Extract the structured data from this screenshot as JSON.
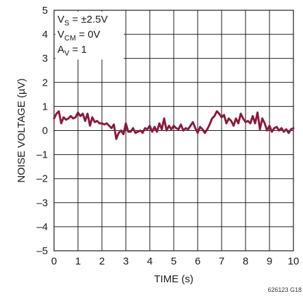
{
  "chart_data": {
    "type": "line",
    "title": "",
    "xlabel": "TIME (s)",
    "ylabel": "NOISE VOLTAGE (µV)",
    "xlim": [
      0,
      10
    ],
    "ylim": [
      -5,
      5
    ],
    "xticks": [
      "0",
      "1",
      "2",
      "3",
      "4",
      "5",
      "6",
      "7",
      "8",
      "9",
      "10"
    ],
    "yticks": [
      "5",
      "4",
      "3",
      "2",
      "1",
      "0",
      "–1",
      "–2",
      "–3",
      "–4",
      "–5"
    ],
    "grid": true,
    "conditions": {
      "vs": {
        "main": "V",
        "sub": "S",
        "rest": " = ±2.5V"
      },
      "vcm": {
        "main": "V",
        "sub": "CM",
        "rest": " = 0V"
      },
      "av": {
        "main": "A",
        "sub": "V",
        "rest": " = 1"
      }
    },
    "figure_ref": "626123 G18",
    "series": [
      {
        "color": "#8b1a3a",
        "x": [
          0.0,
          0.1,
          0.2,
          0.3,
          0.4,
          0.5,
          0.6,
          0.7,
          0.8,
          0.9,
          1.0,
          1.1,
          1.2,
          1.3,
          1.4,
          1.5,
          1.6,
          1.7,
          1.8,
          1.9,
          2.0,
          2.1,
          2.2,
          2.3,
          2.4,
          2.5,
          2.6,
          2.7,
          2.8,
          2.9,
          3.0,
          3.1,
          3.2,
          3.3,
          3.4,
          3.5,
          3.6,
          3.7,
          3.8,
          3.9,
          4.0,
          4.1,
          4.2,
          4.3,
          4.4,
          4.5,
          4.6,
          4.7,
          4.8,
          4.9,
          5.0,
          5.1,
          5.2,
          5.3,
          5.4,
          5.5,
          5.6,
          5.7,
          5.8,
          5.9,
          6.0,
          6.1,
          6.2,
          6.3,
          6.4,
          6.5,
          6.6,
          6.7,
          6.8,
          6.9,
          7.0,
          7.1,
          7.2,
          7.3,
          7.4,
          7.5,
          7.6,
          7.7,
          7.8,
          7.9,
          8.0,
          8.1,
          8.2,
          8.3,
          8.4,
          8.5,
          8.6,
          8.7,
          8.8,
          8.9,
          9.0,
          9.1,
          9.2,
          9.3,
          9.4,
          9.5,
          9.6,
          9.7,
          9.8,
          9.9,
          10.0
        ],
        "y": [
          0.5,
          0.7,
          0.8,
          0.3,
          0.55,
          0.45,
          0.5,
          0.6,
          0.5,
          0.55,
          0.75,
          0.6,
          0.7,
          0.4,
          0.7,
          0.2,
          0.55,
          0.35,
          0.4,
          0.3,
          0.3,
          0.25,
          0.3,
          0.2,
          0.1,
          0.25,
          -0.35,
          -0.1,
          0.0,
          -0.15,
          0.3,
          -0.05,
          -0.05,
          0.1,
          -0.1,
          -0.05,
          0.0,
          -0.1,
          0.1,
          0.05,
          0.2,
          -0.05,
          0.15,
          -0.05,
          0.3,
          0.05,
          0.5,
          0.0,
          0.2,
          0.05,
          0.2,
          0.1,
          0.05,
          0.25,
          0.0,
          0.1,
          0.05,
          0.2,
          0.35,
          0.1,
          -0.1,
          0.15,
          0.05,
          -0.1,
          0.05,
          0.25,
          0.5,
          0.6,
          0.8,
          0.7,
          0.55,
          0.65,
          0.3,
          0.5,
          0.4,
          0.2,
          0.5,
          0.3,
          0.7,
          0.5,
          0.35,
          0.4,
          0.3,
          0.6,
          0.3,
          0.75,
          0.05,
          0.5,
          0.3,
          0.0,
          0.2,
          -0.05,
          0.1,
          0.15,
          0.0,
          0.1,
          -0.05,
          0.05,
          -0.1,
          0.05,
          0.1
        ]
      }
    ]
  }
}
